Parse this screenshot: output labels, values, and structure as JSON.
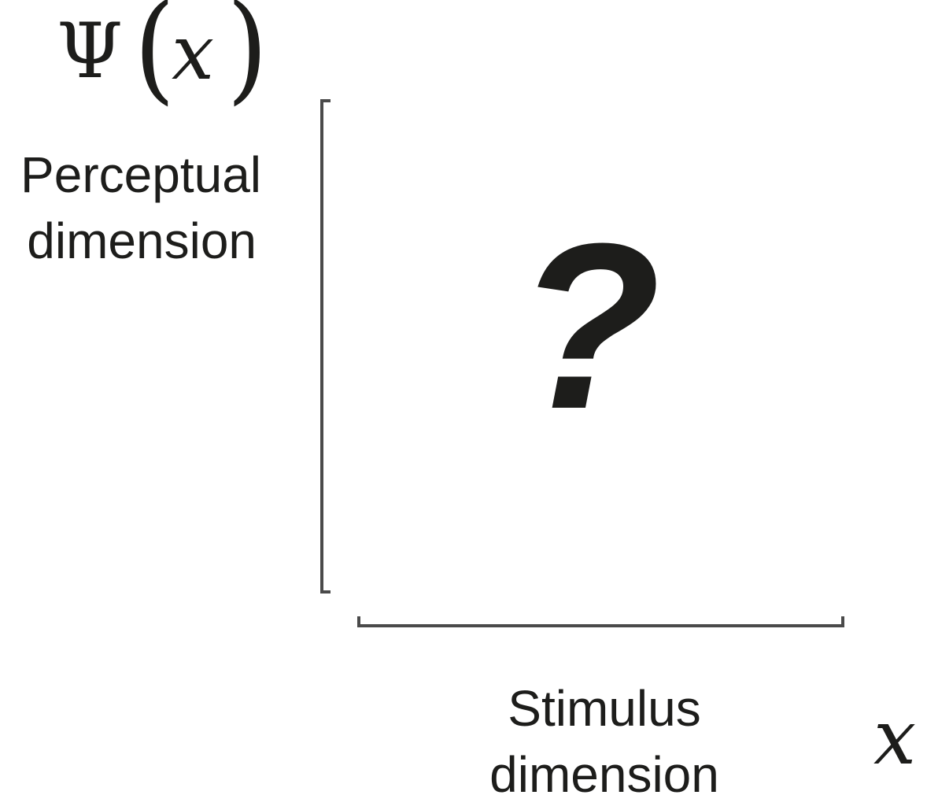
{
  "y_symbol": {
    "function": "Ψ",
    "open_paren": "(",
    "variable": "x",
    "close_paren": ")"
  },
  "y_label": {
    "line1": "Perceptual",
    "line2": "dimension"
  },
  "x_symbol": "x",
  "x_label": {
    "line1": "Stimulus",
    "line2": "dimension"
  },
  "center_mark": "?",
  "colors": {
    "text": "#1d1d1b",
    "axis": "#4a4a4a",
    "background": "#ffffff"
  }
}
